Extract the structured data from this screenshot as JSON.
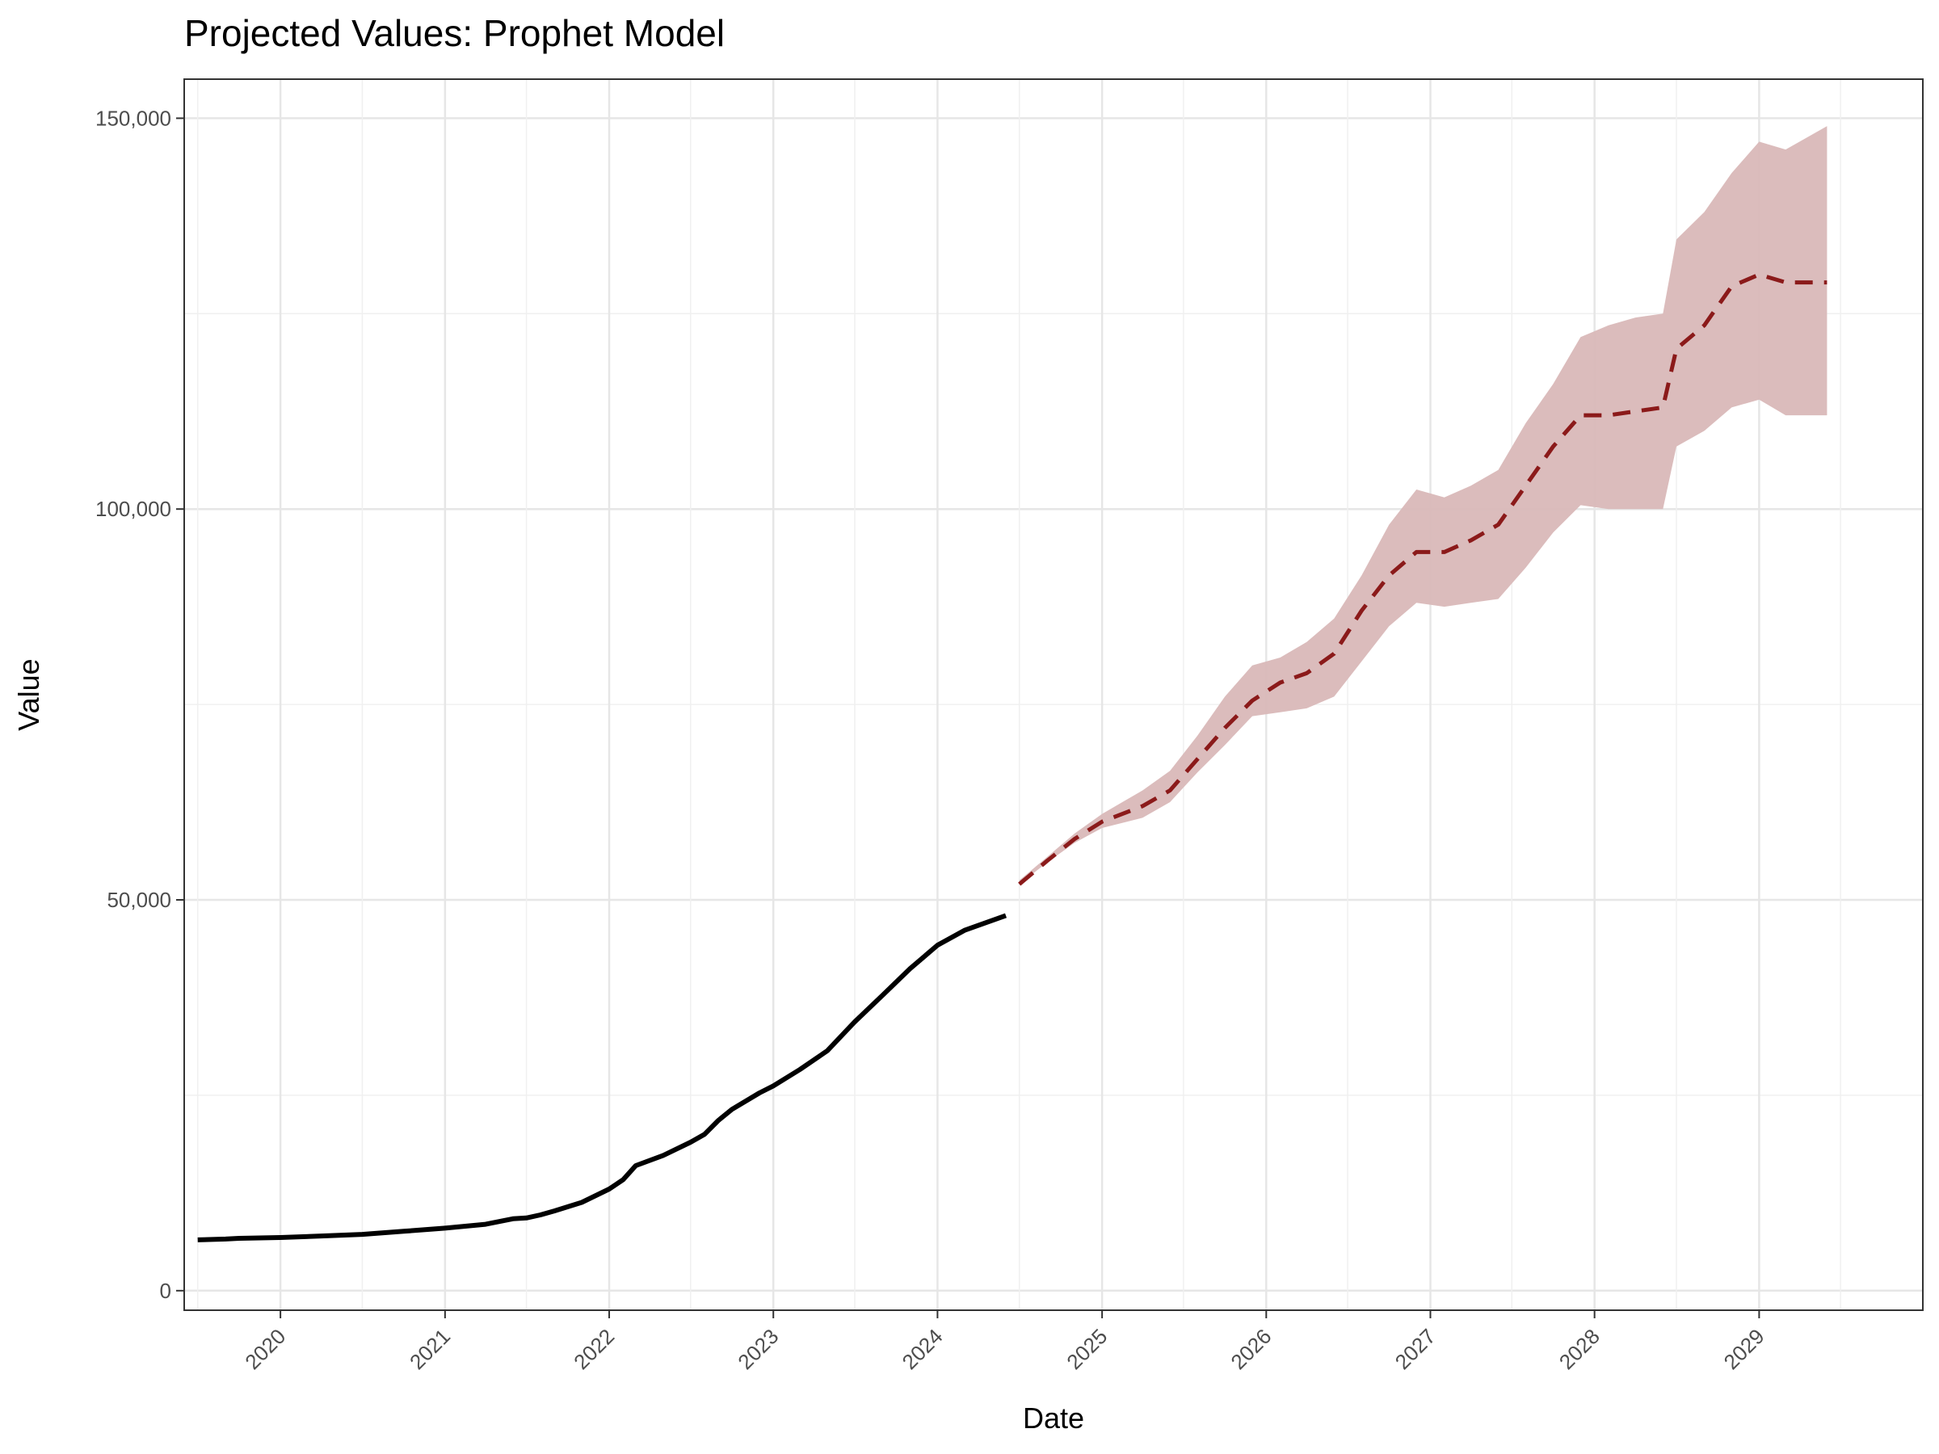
{
  "chart_data": {
    "type": "line",
    "title": "Projected Values: Prophet Model",
    "xlabel": "Date",
    "ylabel": "Value",
    "ylim": [
      0,
      150000
    ],
    "y_ticks": [
      0,
      50000,
      100000,
      150000
    ],
    "y_tick_labels": [
      "0",
      "50,000",
      "100,000",
      "150,000"
    ],
    "x_ticks": [
      "2020",
      "2021",
      "2022",
      "2023",
      "2024",
      "2025",
      "2026",
      "2027",
      "2028",
      "2029"
    ],
    "xlim": [
      "2019-06-01",
      "2029-12-31"
    ],
    "grid": true,
    "legend": "none",
    "colors": {
      "historical": "#000000",
      "forecast": "#8b1a1a",
      "band": "#d9b8b8"
    },
    "series": [
      {
        "role": "historical",
        "x": [
          "2019-07-01",
          "2019-09-01",
          "2019-10-01",
          "2020-01-01",
          "2020-04-01",
          "2020-07-01",
          "2020-10-01",
          "2021-01-01",
          "2021-04-01",
          "2021-06-01",
          "2021-07-01",
          "2021-08-01",
          "2021-09-01",
          "2021-11-01",
          "2022-01-01",
          "2022-02-01",
          "2022-03-01",
          "2022-05-01",
          "2022-07-01",
          "2022-08-01",
          "2022-09-01",
          "2022-10-01",
          "2022-12-01",
          "2023-01-01",
          "2023-03-01",
          "2023-05-01",
          "2023-07-01",
          "2023-09-01",
          "2023-11-01",
          "2024-01-01",
          "2024-03-01",
          "2024-06-01"
        ],
        "values": [
          6500,
          6600,
          6700,
          6800,
          7000,
          7200,
          7600,
          8000,
          8500,
          9200,
          9300,
          9700,
          10200,
          11300,
          13000,
          14200,
          16000,
          17300,
          19000,
          20000,
          21800,
          23200,
          25300,
          26200,
          28300,
          30700,
          34400,
          37800,
          41200,
          44200,
          46100,
          48000
        ]
      },
      {
        "role": "forecast",
        "x": [
          "2024-07-01",
          "2024-09-01",
          "2024-11-01",
          "2025-01-01",
          "2025-04-01",
          "2025-06-01",
          "2025-08-01",
          "2025-10-01",
          "2025-12-01",
          "2026-02-01",
          "2026-04-01",
          "2026-06-01",
          "2026-08-01",
          "2026-10-01",
          "2026-12-01",
          "2027-02-01",
          "2027-04-01",
          "2027-06-01",
          "2027-08-01",
          "2027-10-01",
          "2027-12-01",
          "2028-02-01",
          "2028-04-01",
          "2028-06-01",
          "2028-07-01",
          "2028-09-01",
          "2028-11-01",
          "2029-01-01",
          "2029-03-01",
          "2029-06-01"
        ],
        "values": [
          52000,
          55000,
          57800,
          60000,
          62000,
          64000,
          68000,
          72000,
          75500,
          77800,
          79000,
          81500,
          87000,
          91500,
          94500,
          94500,
          96000,
          98000,
          103000,
          108000,
          112000,
          112000,
          112500,
          113000,
          120500,
          123500,
          128500,
          130000,
          129000,
          129000
        ],
        "lower": [
          52000,
          54800,
          57300,
          59200,
          60500,
          62500,
          66300,
          69800,
          73500,
          74000,
          74500,
          76000,
          80500,
          85000,
          88000,
          87500,
          88000,
          88500,
          92500,
          97000,
          100500,
          100000,
          100000,
          100000,
          108000,
          110000,
          113000,
          114000,
          112000,
          112000
        ],
        "upper": [
          52500,
          55500,
          58500,
          61000,
          64000,
          66500,
          71000,
          76000,
          80000,
          81000,
          83000,
          86000,
          91500,
          98000,
          102500,
          101500,
          103000,
          105000,
          111000,
          116000,
          122000,
          123500,
          124500,
          125000,
          134500,
          138000,
          143000,
          147000,
          146000,
          149000
        ]
      }
    ]
  }
}
